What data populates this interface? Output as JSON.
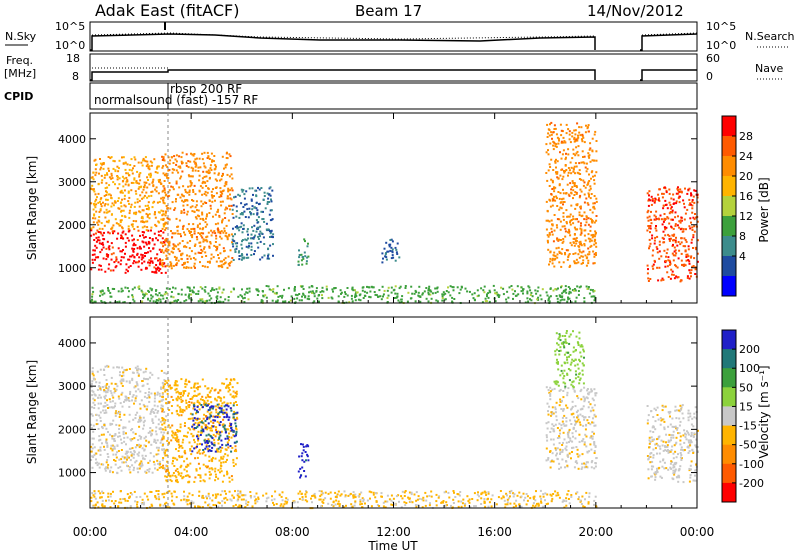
{
  "header": {
    "station": "Adak East (fitACF)",
    "beam": "Beam 17",
    "date": "14/Nov/2012"
  },
  "strips": {
    "nsky_label": "N.Sky",
    "nsky_ticks": [
      "10^5",
      "10^0"
    ],
    "nsearch_label": "N.Search",
    "nsearch_ticks": [
      "10^5",
      "10^0"
    ],
    "freq_label_line1": "Freq.",
    "freq_label_line2": "[MHz]",
    "freq_ticks": [
      "18",
      "8"
    ],
    "nave_label": "Nave",
    "nave_ticks": [
      "60",
      "0"
    ],
    "cpid_label": "CPID",
    "cpid_modes": [
      "normalsound (fast) -157 RF",
      "rbsp 200 RF"
    ]
  },
  "panels": {
    "power": {
      "ylabel": "Slant Range [km]",
      "cbar_label": "Power [dB]",
      "cbar_ticks": [
        "28",
        "24",
        "20",
        "16",
        "12",
        "8",
        "4"
      ],
      "cbar_colors": [
        "#ff0000",
        "#ff5a00",
        "#ff8c00",
        "#ffb400",
        "#b4d23c",
        "#3ca03c",
        "#3c8c8c",
        "#1e4ba0",
        "#0000ff"
      ]
    },
    "velocity": {
      "ylabel": "Slant Range [km]",
      "cbar_label": "Velocity [m s⁻¹]",
      "cbar_ticks": [
        "200",
        "100",
        "50",
        "15",
        "-15",
        "-50",
        "-100",
        "-200"
      ],
      "cbar_colors": [
        "#2020c8",
        "#207878",
        "#3ca03c",
        "#8cd23c",
        "#c8c8c8",
        "#ffb400",
        "#ff8c00",
        "#ff5a00",
        "#ff0000"
      ]
    }
  },
  "xaxis": {
    "label": "Time UT",
    "ticks": [
      "00:00",
      "04:00",
      "08:00",
      "12:00",
      "16:00",
      "20:00",
      "00:00"
    ]
  },
  "chart_data": {
    "type": "heatmap",
    "title": "Adak East (fitACF)",
    "x": [
      "00:00",
      "04:00",
      "08:00",
      "12:00",
      "16:00",
      "20:00",
      "00:00"
    ],
    "xlabel": "Time UT",
    "ylabel": "Slant Range [km]",
    "xlim_hours": [
      0,
      24
    ],
    "ylim": [
      180,
      4600
    ],
    "yticks": [
      1000,
      2000,
      3000,
      4000
    ],
    "data_gap_hours": [
      20,
      22
    ],
    "series": [
      {
        "name": "Power [dB]",
        "range": [
          0,
          30
        ],
        "patches": [
          {
            "t": [
              0,
              3
            ],
            "r": [
              900,
              1900
            ],
            "level": 28
          },
          {
            "t": [
              0,
              3
            ],
            "r": [
              1900,
              3000
            ],
            "level": 20
          },
          {
            "t": [
              0,
              2.8
            ],
            "r": [
              3000,
              3600
            ],
            "level": 20
          },
          {
            "t": [
              2.8,
              5.6
            ],
            "r": [
              1000,
              3700
            ],
            "level": 22
          },
          {
            "t": [
              5.6,
              7.2
            ],
            "r": [
              1200,
              2900
            ],
            "level": 7
          },
          {
            "t": [
              8.2,
              8.6
            ],
            "r": [
              1000,
              1700
            ],
            "level": 10
          },
          {
            "t": [
              11.5,
              12.2
            ],
            "r": [
              1100,
              1700
            ],
            "level": 6
          },
          {
            "t": [
              18,
              20
            ],
            "r": [
              1000,
              4400
            ],
            "level": 22
          },
          {
            "t": [
              22,
              24
            ],
            "r": [
              700,
              2900
            ],
            "level": 26
          },
          {
            "t": [
              0,
              20
            ],
            "r": [
              200,
              600
            ],
            "level": 12
          }
        ]
      },
      {
        "name": "Velocity [m s⁻¹]",
        "range": [
          -250,
          250
        ],
        "patches": [
          {
            "t": [
              0,
              3
            ],
            "r": [
              1000,
              3500
            ],
            "level": -10
          },
          {
            "t": [
              2.8,
              5.8
            ],
            "r": [
              800,
              3200
            ],
            "level": -60
          },
          {
            "t": [
              4,
              5.8
            ],
            "r": [
              1500,
              2600
            ],
            "level": 200
          },
          {
            "t": [
              8.2,
              8.6
            ],
            "r": [
              900,
              1700
            ],
            "level": 220
          },
          {
            "t": [
              18,
              20
            ],
            "r": [
              1100,
              3000
            ],
            "level": -10
          },
          {
            "t": [
              18.3,
              19.5
            ],
            "r": [
              3000,
              4300
            ],
            "level": 60
          },
          {
            "t": [
              22,
              24
            ],
            "r": [
              800,
              2600
            ],
            "level": -10
          },
          {
            "t": [
              0,
              20
            ],
            "r": [
              200,
              600
            ],
            "level": -40
          }
        ]
      }
    ]
  }
}
